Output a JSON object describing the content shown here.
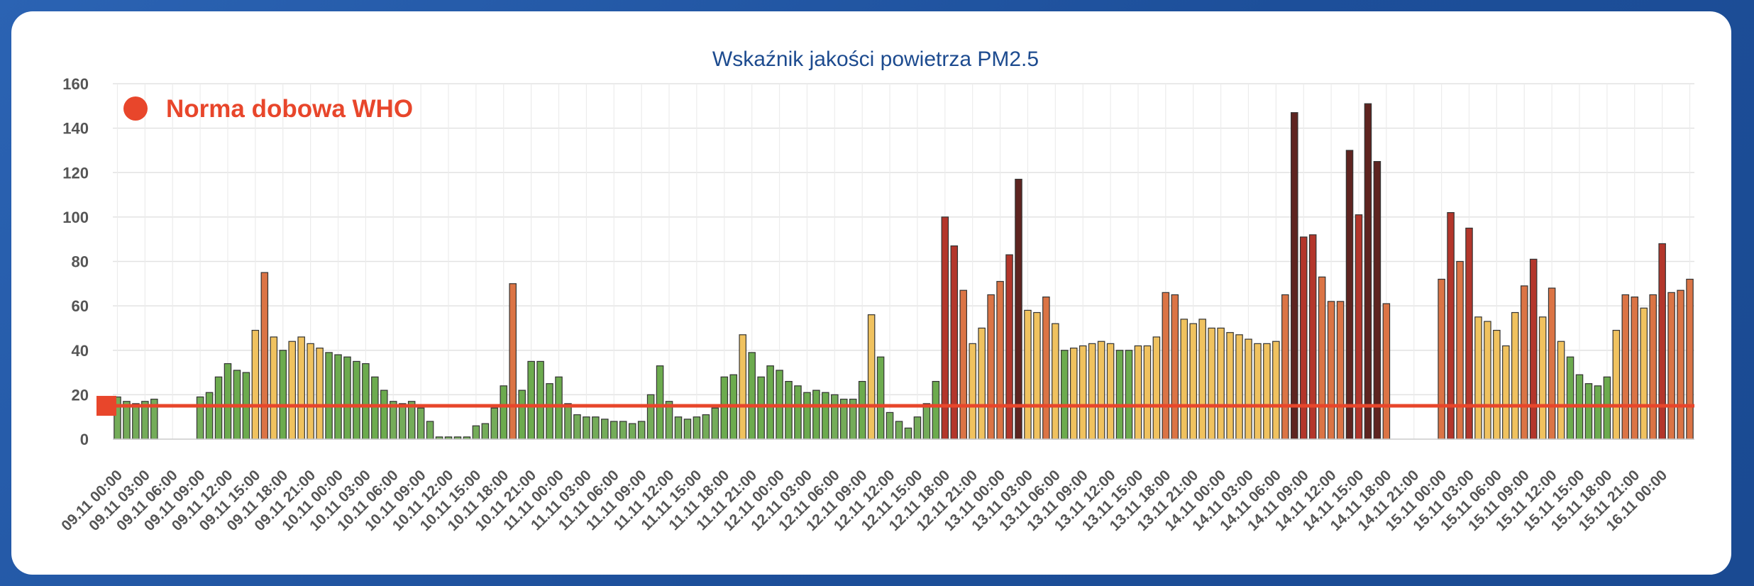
{
  "chart_data": {
    "type": "bar",
    "title": "Wskaźnik jakości powietrza PM2.5",
    "xlabel": "",
    "ylabel": "",
    "ylim": [
      0,
      160
    ],
    "y_ticks": [
      0,
      20,
      40,
      60,
      80,
      100,
      120,
      140,
      160
    ],
    "grid": true,
    "x_tick_labels": [
      "09.11 00:00",
      "09.11 03:00",
      "09.11 06:00",
      "09.11 09:00",
      "09.11 12:00",
      "09.11 15:00",
      "09.11 18:00",
      "09.11 21:00",
      "10.11 00:00",
      "10.11 03:00",
      "10.11 06:00",
      "10.11 09:00",
      "10.11 12:00",
      "10.11 15:00",
      "10.11 18:00",
      "10.11 21:00",
      "11.11 00:00",
      "11.11 03:00",
      "11.11 06:00",
      "11.11 09:00",
      "11.11 12:00",
      "11.11 15:00",
      "11.11 18:00",
      "11.11 21:00",
      "12.11 00:00",
      "12.11 03:00",
      "12.11 06:00",
      "12.11 09:00",
      "12.11 12:00",
      "12.11 15:00",
      "12.11 18:00",
      "12.11 21:00",
      "13.11 00:00",
      "13.11 03:00",
      "13.11 06:00",
      "13.11 09:00",
      "13.11 12:00",
      "13.11 15:00",
      "13.11 18:00",
      "13.11 21:00",
      "14.11 00:00",
      "14.11 03:00",
      "14.11 06:00",
      "14.11 09:00",
      "14.11 12:00",
      "14.11 15:00",
      "14.11 18:00",
      "14.11 21:00",
      "15.11 00:00",
      "15.11 03:00",
      "15.11 06:00",
      "15.11 09:00",
      "15.11 12:00",
      "15.11 15:00",
      "15.11 18:00",
      "15.11 21:00",
      "16.11 00:00"
    ],
    "hours_per_tick": 3,
    "values": [
      19,
      17,
      16,
      17,
      18,
      null,
      null,
      null,
      null,
      19,
      21,
      28,
      34,
      31,
      30,
      49,
      75,
      46,
      40,
      44,
      46,
      43,
      41,
      39,
      38,
      37,
      35,
      34,
      28,
      22,
      17,
      16,
      17,
      14,
      8,
      1,
      1,
      1,
      1,
      6,
      7,
      14,
      24,
      70,
      22,
      35,
      35,
      25,
      28,
      16,
      11,
      10,
      10,
      9,
      8,
      8,
      7,
      8,
      20,
      33,
      17,
      10,
      9,
      10,
      11,
      14,
      28,
      29,
      47,
      39,
      28,
      33,
      31,
      26,
      24,
      21,
      22,
      21,
      20,
      18,
      18,
      26,
      56,
      37,
      12,
      8,
      5,
      10,
      16,
      26,
      100,
      87,
      67,
      43,
      50,
      65,
      71,
      83,
      117,
      58,
      57,
      64,
      52,
      40,
      41,
      42,
      43,
      44,
      43,
      40,
      40,
      42,
      42,
      46,
      66,
      65,
      54,
      52,
      54,
      50,
      50,
      48,
      47,
      45,
      43,
      43,
      44,
      65,
      147,
      91,
      92,
      73,
      62,
      62,
      130,
      101,
      151,
      125,
      61,
      null,
      null,
      null,
      null,
      null,
      72,
      102,
      80,
      95,
      55,
      53,
      49,
      42,
      57,
      69,
      81,
      55,
      68,
      44,
      37,
      29,
      25,
      24,
      28,
      49,
      65,
      64,
      59,
      65,
      88,
      66,
      67,
      72
    ],
    "color_scale": [
      {
        "max": 20,
        "color": "#74ac59"
      },
      {
        "max": 40,
        "color": "#6cab4e"
      },
      {
        "max": 60,
        "color": "#f0c25f"
      },
      {
        "max": 80,
        "color": "#db7445"
      },
      {
        "max": 110,
        "color": "#b3362b"
      },
      {
        "max": 200,
        "color": "#5e2420"
      }
    ],
    "reference_line": {
      "value": 15,
      "color": "#e8462b"
    },
    "legend": {
      "label": "Norma dobowa WHO",
      "color": "#e8462b",
      "position": "top-left"
    }
  }
}
